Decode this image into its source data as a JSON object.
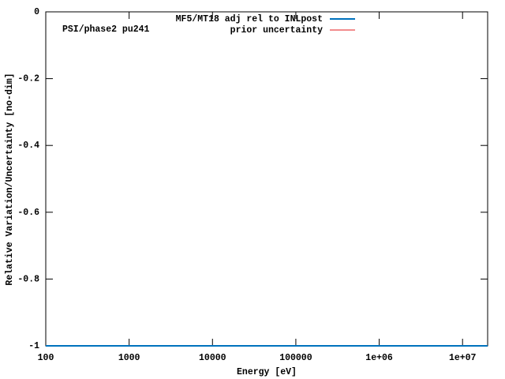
{
  "chart_data": {
    "type": "line",
    "annotation": "PSI/phase2 pu241",
    "x_label": "Energy [eV]",
    "y_label": "Relative Variation/Uncertainty [no-dim]",
    "x": [
      100,
      20000000
    ],
    "series": [
      {
        "name": "MF5/MT18 adj rel to INLpost",
        "color": "#0072bd",
        "values": [
          -1,
          -1
        ]
      },
      {
        "name": "prior uncertainty",
        "color": "#e41a1c",
        "values": [
          -1,
          -1
        ]
      }
    ],
    "xscale": "log",
    "xlim": [
      100,
      20000000
    ],
    "xticks": [
      100,
      1000,
      10000,
      100000,
      {
        "value": 1000000,
        "label": "1e+06"
      },
      {
        "value": 10000000,
        "label": "1e+07"
      }
    ],
    "ylim": [
      -1,
      0
    ],
    "yticks": [
      0,
      -0.2,
      -0.4,
      -0.6,
      -0.8,
      -1
    ]
  }
}
